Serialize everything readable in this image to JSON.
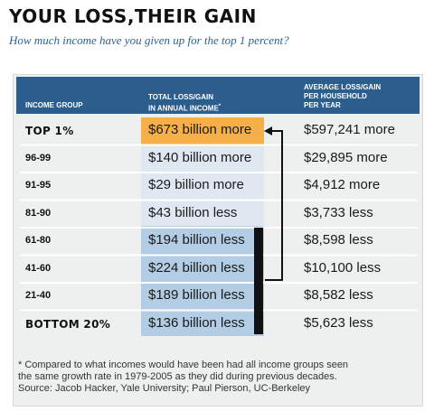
{
  "title": "YOUR LOSS,THEIR GAIN",
  "subtitle": "How much income have you given up for the top 1 percent?",
  "headers": {
    "group": "INCOME GROUP",
    "total_line1": "TOTAL LOSS/GAIN",
    "total_line2": "IN ANNUAL INCOME",
    "total_marker": "*",
    "avg_line1": "AVERAGE LOSS/GAIN",
    "avg_line2": "PER HOUSEHOLD",
    "avg_line3": "PER YEAR"
  },
  "colors": {
    "header_bg": "#2b5d8d",
    "top_gain": "#f6b04a",
    "middle_band": "#dfe8f1",
    "bottom_band": "#b3cde4",
    "bracket": "#111111"
  },
  "chart_data": {
    "type": "table",
    "columns": [
      "INCOME GROUP",
      "TOTAL LOSS/GAIN IN ANNUAL INCOME*",
      "AVERAGE LOSS/GAIN PER HOUSEHOLD PER YEAR"
    ],
    "rows": [
      {
        "group": "TOP 1%",
        "total": "$673 billion more",
        "average": "$597,241 more",
        "total_billions": 673,
        "average_dollars": 597241,
        "direction": "gain",
        "emphasis": true
      },
      {
        "group": "96-99",
        "total": "$140 billion more",
        "average": "$29,895 more",
        "total_billions": 140,
        "average_dollars": 29895,
        "direction": "gain",
        "emphasis": false
      },
      {
        "group": "91-95",
        "total": "$29 billion more",
        "average": "$4,912 more",
        "total_billions": 29,
        "average_dollars": 4912,
        "direction": "gain",
        "emphasis": false
      },
      {
        "group": "81-90",
        "total": "$43 billion less",
        "average": "$3,733 less",
        "total_billions": -43,
        "average_dollars": -3733,
        "direction": "loss",
        "emphasis": false
      },
      {
        "group": "61-80",
        "total": "$194 billion less",
        "average": "$8,598 less",
        "total_billions": -194,
        "average_dollars": -8598,
        "direction": "loss",
        "emphasis": false
      },
      {
        "group": "41-60",
        "total": "$224 billion less",
        "average": "$10,100 less",
        "total_billions": -224,
        "average_dollars": -10100,
        "direction": "loss",
        "emphasis": false
      },
      {
        "group": "21-40",
        "total": "$189 billion less",
        "average": "$8,582 less",
        "total_billions": -189,
        "average_dollars": -8582,
        "direction": "loss",
        "emphasis": false
      },
      {
        "group": "BOTTOM 20%",
        "total": "$136 billion less",
        "average": "$5,623 less",
        "total_billions": -136,
        "average_dollars": -5623,
        "direction": "loss",
        "emphasis": true
      }
    ],
    "annotation": "bracket arrow from the bottom four groups to TOP 1%"
  },
  "footnote": {
    "line1": "* Compared to what incomes would have been had all income groups seen",
    "line2": "the same growth rate in 1979-2005 as they did during previous decades.",
    "line3": "Source: Jacob Hacker, Yale University; Paul Pierson, UC-Berkeley"
  }
}
